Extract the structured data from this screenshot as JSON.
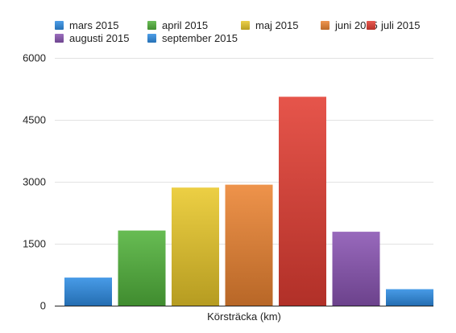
{
  "chart_data": {
    "type": "bar",
    "title": "",
    "xlabel": "Körsträcka (km)",
    "ylabel": "",
    "ylim": [
      0,
      6000
    ],
    "yticks": [
      "0",
      "1500",
      "3000",
      "4500",
      "6000"
    ],
    "grid": true,
    "legend_position": "top",
    "series": [
      {
        "name": "mars 2015",
        "value": 680,
        "color": "#2f8de4"
      },
      {
        "name": "april 2015",
        "value": 1820,
        "color": "#52b33c"
      },
      {
        "name": "maj 2015",
        "value": 2860,
        "color": "#e9c82a"
      },
      {
        "name": "juni 2015",
        "value": 2930,
        "color": "#ec8432"
      },
      {
        "name": "juli 2015",
        "value": 5060,
        "color": "#e33e33"
      },
      {
        "name": "augusti 2015",
        "value": 1790,
        "color": "#8a55b3"
      },
      {
        "name": "september 2015",
        "value": 400,
        "color": "#2f8de4"
      }
    ]
  }
}
